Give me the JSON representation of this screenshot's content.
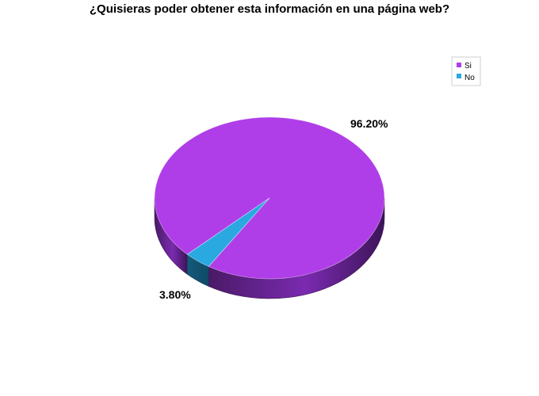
{
  "chart_data": {
    "type": "pie",
    "title": "¿Quisieras poder obtener esta información en una página web?",
    "categories": [
      "Si",
      "No"
    ],
    "values": [
      96.2,
      3.8
    ],
    "data_labels": [
      "96.20%",
      "3.80%"
    ],
    "colors": [
      "#b03ee8",
      "#29a9e0"
    ],
    "legend": {
      "position": "top-right",
      "entries": [
        "Si",
        "No"
      ]
    },
    "three_d": true
  }
}
